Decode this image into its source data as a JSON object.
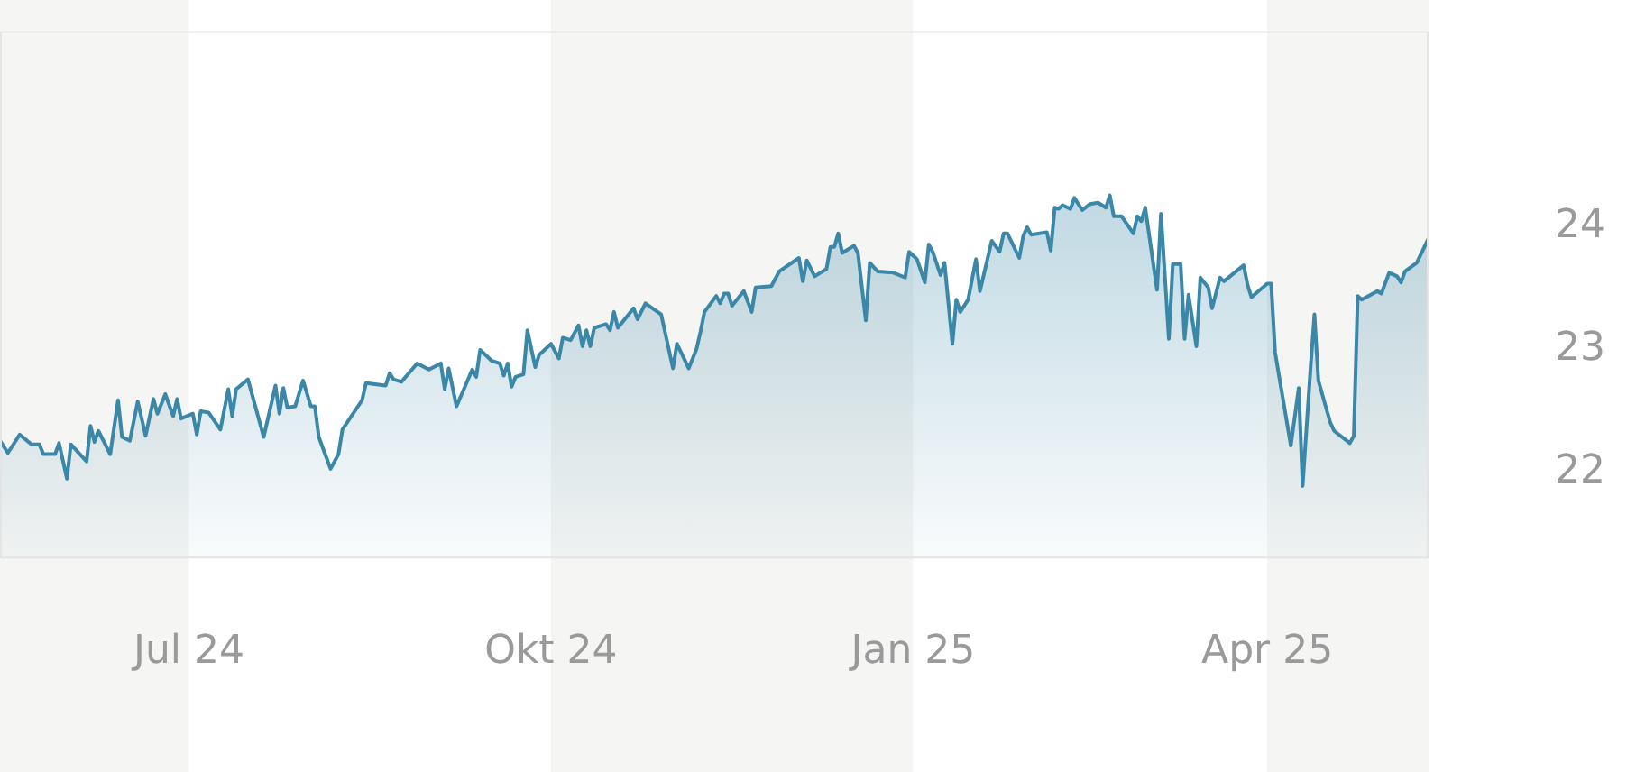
{
  "chart_data": {
    "type": "area",
    "xlim": [
      "2024-05-14",
      "2025-05-12"
    ],
    "xticks": [
      {
        "value": "2024-07-01",
        "label": "Jul 24"
      },
      {
        "value": "2024-10-01",
        "label": "Okt 24"
      },
      {
        "value": "2025-01-01",
        "label": "Jan 25"
      },
      {
        "value": "2025-04-01",
        "label": "Apr 25"
      }
    ],
    "ylim": [
      21.3,
      25.6
    ],
    "yticks": [
      22,
      23,
      24
    ],
    "grid": false,
    "legend": false,
    "bands": [
      {
        "axis": "x",
        "from": "2024-05-14",
        "to": "2024-07-01",
        "color": "#f5f5f3"
      },
      {
        "axis": "x",
        "from": "2024-10-01",
        "to": "2025-01-01",
        "color": "#f5f5f3"
      },
      {
        "axis": "x",
        "from": "2025-04-01",
        "to": "2025-05-12",
        "color": "#f5f5f3"
      }
    ],
    "series": [
      {
        "color": "#3a87a8",
        "x": [
          "2024-05-14",
          "2024-05-16",
          "2024-05-19",
          "2024-05-22",
          "2024-05-24",
          "2024-05-25",
          "2024-05-28",
          "2024-05-29",
          "2024-05-31",
          "2024-06-01",
          "2024-06-05",
          "2024-06-06",
          "2024-06-07",
          "2024-06-08",
          "2024-06-11",
          "2024-06-13",
          "2024-06-14",
          "2024-06-16",
          "2024-06-18",
          "2024-06-20",
          "2024-06-22",
          "2024-06-23",
          "2024-06-25",
          "2024-06-27",
          "2024-06-28",
          "2024-06-29",
          "2024-07-02",
          "2024-07-03",
          "2024-07-04",
          "2024-07-06",
          "2024-07-09",
          "2024-07-11",
          "2024-07-12",
          "2024-07-13",
          "2024-07-16",
          "2024-07-20",
          "2024-07-23",
          "2024-07-24",
          "2024-07-25",
          "2024-07-26",
          "2024-07-28",
          "2024-07-30",
          "2024-08-01",
          "2024-08-02",
          "2024-08-03",
          "2024-08-06",
          "2024-08-08",
          "2024-08-09",
          "2024-08-14",
          "2024-08-15",
          "2024-08-20",
          "2024-08-21",
          "2024-08-22",
          "2024-08-24",
          "2024-08-28",
          "2024-08-31",
          "2024-09-03",
          "2024-09-04",
          "2024-09-05",
          "2024-09-07",
          "2024-09-11",
          "2024-09-12",
          "2024-09-13",
          "2024-09-16",
          "2024-09-18",
          "2024-09-19",
          "2024-09-20",
          "2024-09-21",
          "2024-09-22",
          "2024-09-24",
          "2024-09-25",
          "2024-09-27",
          "2024-09-28",
          "2024-10-01",
          "2024-10-03",
          "2024-10-04",
          "2024-10-06",
          "2024-10-08",
          "2024-10-09",
          "2024-10-10",
          "2024-10-11",
          "2024-10-12",
          "2024-10-15",
          "2024-10-16",
          "2024-10-17",
          "2024-10-18",
          "2024-10-22",
          "2024-10-23",
          "2024-10-25",
          "2024-10-29",
          "2024-11-01",
          "2024-11-02",
          "2024-11-05",
          "2024-11-07",
          "2024-11-08",
          "2024-11-09",
          "2024-11-12",
          "2024-11-13",
          "2024-11-14",
          "2024-11-15",
          "2024-11-16",
          "2024-11-19",
          "2024-11-21",
          "2024-11-22",
          "2024-11-26",
          "2024-11-28",
          "2024-12-03",
          "2024-12-04",
          "2024-12-05",
          "2024-12-07",
          "2024-12-10",
          "2024-12-11",
          "2024-12-12",
          "2024-12-13",
          "2024-12-14",
          "2024-12-17",
          "2024-12-18",
          "2024-12-20",
          "2024-12-21",
          "2024-12-23",
          "2024-12-27",
          "2024-12-30",
          "2024-12-31",
          "2025-01-02",
          "2025-01-04",
          "2025-01-05",
          "2025-01-06",
          "2025-01-08",
          "2025-01-09",
          "2025-01-11",
          "2025-01-12",
          "2025-01-13",
          "2025-01-15",
          "2025-01-17",
          "2025-01-18",
          "2025-01-21",
          "2025-01-23",
          "2025-01-24",
          "2025-01-25",
          "2025-01-28",
          "2025-01-29",
          "2025-01-30",
          "2025-01-31",
          "2025-02-04",
          "2025-02-05",
          "2025-02-06",
          "2025-02-07",
          "2025-02-08",
          "2025-02-10",
          "2025-02-11",
          "2025-02-13",
          "2025-02-15",
          "2025-02-17",
          "2025-02-19",
          "2025-02-20",
          "2025-02-21",
          "2025-02-23",
          "2025-02-26",
          "2025-02-27",
          "2025-02-28",
          "2025-03-01",
          "2025-03-04",
          "2025-03-05",
          "2025-03-07",
          "2025-03-08",
          "2025-03-10",
          "2025-03-11",
          "2025-03-12",
          "2025-03-14",
          "2025-03-15",
          "2025-03-17",
          "2025-03-18",
          "2025-03-20",
          "2025-03-21",
          "2025-03-26",
          "2025-03-27",
          "2025-03-28",
          "2025-04-01",
          "2025-04-02",
          "2025-04-03",
          "2025-04-07",
          "2025-04-09",
          "2025-04-10",
          "2025-04-12",
          "2025-04-13",
          "2025-04-14",
          "2025-04-17",
          "2025-04-18",
          "2025-04-22",
          "2025-04-23",
          "2025-04-24",
          "2025-04-25",
          "2025-04-29",
          "2025-04-30",
          "2025-05-02",
          "2025-05-04",
          "2025-05-05",
          "2025-05-06",
          "2025-05-09",
          "2025-05-12"
        ],
        "values": [
          22.26,
          22.16,
          22.31,
          22.23,
          22.23,
          22.15,
          22.15,
          22.24,
          21.95,
          22.23,
          22.09,
          22.38,
          22.25,
          22.34,
          22.15,
          22.59,
          22.29,
          22.26,
          22.58,
          22.3,
          22.6,
          22.48,
          22.64,
          22.46,
          22.6,
          22.44,
          22.48,
          22.31,
          22.5,
          22.49,
          22.35,
          22.68,
          22.46,
          22.68,
          22.76,
          22.29,
          22.71,
          22.48,
          22.69,
          22.53,
          22.54,
          22.75,
          22.54,
          22.54,
          22.29,
          22.03,
          22.15,
          22.35,
          22.59,
          22.73,
          22.71,
          22.81,
          22.76,
          22.74,
          22.89,
          22.84,
          22.89,
          22.68,
          22.85,
          22.54,
          22.84,
          22.78,
          23.0,
          22.91,
          22.89,
          22.79,
          22.89,
          22.7,
          22.78,
          22.8,
          23.16,
          22.86,
          22.96,
          23.05,
          22.93,
          23.1,
          23.08,
          23.2,
          23.03,
          23.16,
          23.03,
          23.18,
          23.21,
          23.16,
          23.31,
          23.18,
          23.34,
          23.25,
          23.38,
          23.29,
          22.85,
          23.05,
          22.85,
          23.01,
          23.15,
          23.31,
          23.44,
          23.38,
          23.46,
          23.46,
          23.36,
          23.48,
          23.31,
          23.51,
          23.52,
          23.64,
          23.75,
          23.56,
          23.73,
          23.6,
          23.66,
          23.84,
          23.84,
          23.95,
          23.79,
          23.85,
          23.79,
          23.24,
          23.71,
          23.64,
          23.63,
          23.59,
          23.8,
          23.74,
          23.55,
          23.86,
          23.8,
          23.61,
          23.71,
          23.05,
          23.41,
          23.31,
          23.41,
          23.74,
          23.48,
          23.89,
          23.8,
          23.95,
          23.95,
          23.75,
          23.93,
          24.0,
          23.94,
          23.96,
          23.81,
          24.16,
          24.15,
          24.18,
          24.15,
          24.24,
          24.14,
          24.19,
          24.2,
          24.16,
          24.26,
          24.09,
          24.09,
          23.95,
          24.09,
          24.05,
          24.16,
          23.49,
          24.11,
          23.09,
          23.7,
          23.7,
          23.09,
          23.45,
          23.03,
          23.59,
          23.51,
          23.34,
          23.59,
          23.56,
          23.69,
          23.53,
          23.43,
          23.54,
          23.54,
          22.98,
          22.22,
          22.69,
          21.89,
          22.85,
          23.29,
          22.75,
          22.41,
          22.34,
          22.24,
          22.3,
          23.44,
          23.41,
          23.48,
          23.46,
          23.63,
          23.6,
          23.55,
          23.64,
          23.71,
          23.91
        ]
      }
    ]
  }
}
